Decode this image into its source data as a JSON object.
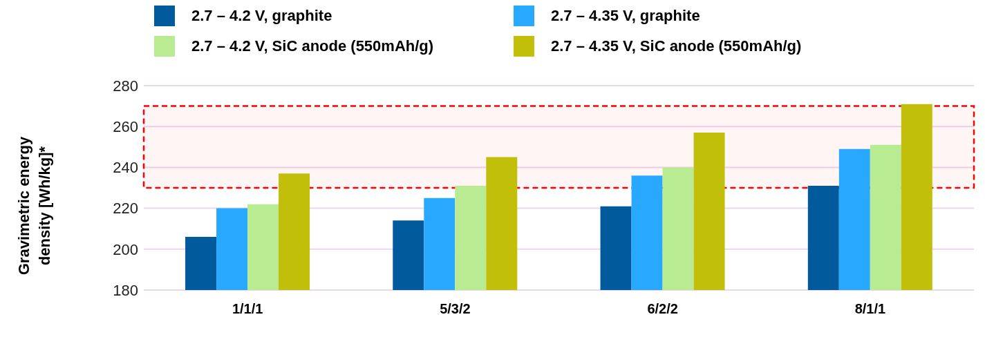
{
  "chart_data": {
    "type": "bar",
    "ylabel": "Gravimetric energy density [Wh/kg]*",
    "categories": [
      "1/1/1",
      "5/3/2",
      "6/2/2",
      "8/1/1"
    ],
    "series": [
      {
        "name": "2.7 – 4.2 V, graphite",
        "color": "#005a9c",
        "values": [
          206,
          214,
          221,
          231
        ]
      },
      {
        "name": "2.7 – 4.35 V, graphite",
        "color": "#29a8ff",
        "values": [
          220,
          225,
          236,
          249
        ]
      },
      {
        "name": "2.7 – 4.2 V, SiC anode (550mAh/g)",
        "color": "#b8eb92",
        "values": [
          222,
          231,
          240,
          251
        ]
      },
      {
        "name": "2.7 – 4.35 V, SiC anode (550mAh/g)",
        "color": "#c2bf0b",
        "values": [
          237,
          245,
          257,
          271
        ]
      }
    ],
    "ylim": [
      180,
      280
    ],
    "yticks": [
      180,
      200,
      220,
      240,
      260,
      280
    ],
    "grid": "y",
    "legend": "top",
    "bands": [
      {
        "axis": "y",
        "from": 230,
        "to": 270,
        "color": "#ff0000"
      }
    ]
  }
}
